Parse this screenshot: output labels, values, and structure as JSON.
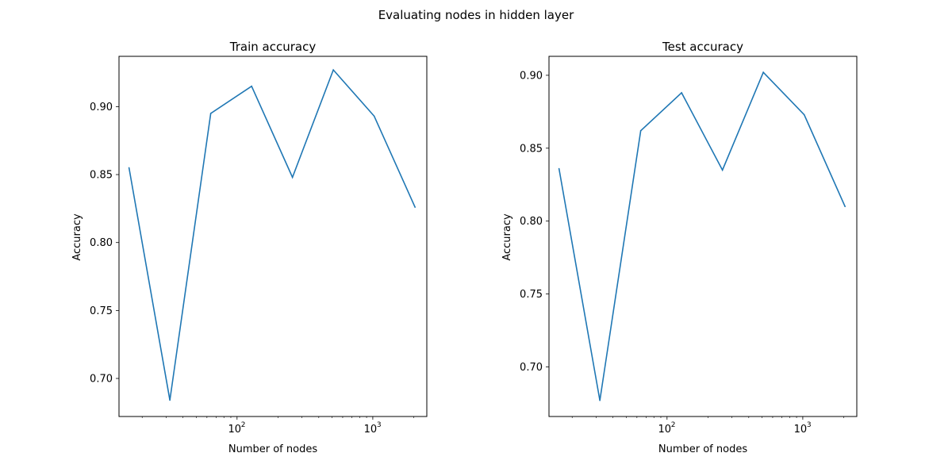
{
  "figure": {
    "title": "Evaluating nodes in hidden layer"
  },
  "chart_data": [
    {
      "type": "line",
      "title": "Train accuracy",
      "xlabel": "Number of nodes",
      "ylabel": "Accuracy",
      "x_scale": "log",
      "grid": false,
      "xlim": [
        13.5,
        2500
      ],
      "ylim": [
        0.672,
        0.937
      ],
      "x_ticks": [
        {
          "value": 100,
          "base": "10",
          "exp": "2"
        },
        {
          "value": 1000,
          "base": "10",
          "exp": "3"
        }
      ],
      "y_ticks": [
        "0.70",
        "0.75",
        "0.80",
        "0.85",
        "0.90"
      ],
      "series": [
        {
          "color": "#1f77b4",
          "x": [
            16,
            32,
            64,
            128,
            256,
            512,
            1024,
            2048
          ],
          "y": [
            0.855,
            0.684,
            0.895,
            0.915,
            0.848,
            0.927,
            0.893,
            0.826
          ]
        }
      ]
    },
    {
      "type": "line",
      "title": "Test accuracy",
      "xlabel": "Number of nodes",
      "ylabel": "Accuracy",
      "x_scale": "log",
      "grid": false,
      "xlim": [
        13.5,
        2500
      ],
      "ylim": [
        0.666,
        0.913
      ],
      "x_ticks": [
        {
          "value": 100,
          "base": "10",
          "exp": "2"
        },
        {
          "value": 1000,
          "base": "10",
          "exp": "3"
        }
      ],
      "y_ticks": [
        "0.70",
        "0.75",
        "0.80",
        "0.85",
        "0.90"
      ],
      "series": [
        {
          "color": "#1f77b4",
          "x": [
            16,
            32,
            64,
            128,
            256,
            512,
            1024,
            2048
          ],
          "y": [
            0.836,
            0.677,
            0.862,
            0.888,
            0.835,
            0.902,
            0.873,
            0.81
          ]
        }
      ]
    }
  ]
}
